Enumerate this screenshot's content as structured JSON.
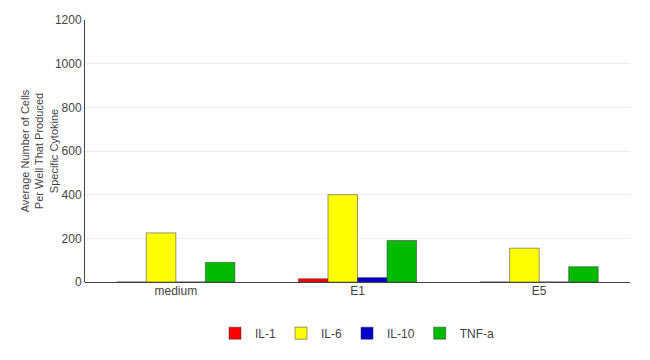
{
  "chart_data": {
    "type": "bar",
    "categories": [
      "medium",
      "E1",
      "E5"
    ],
    "series": [
      {
        "name": "IL-1",
        "color": "#ff0000",
        "values": [
          0,
          15,
          0
        ]
      },
      {
        "name": "IL-6",
        "color": "#ffff00",
        "values": [
          225,
          400,
          155
        ]
      },
      {
        "name": "IL-10",
        "color": "#0000cc",
        "values": [
          0,
          20,
          0
        ]
      },
      {
        "name": "TNF-a",
        "color": "#00bb00",
        "values": [
          90,
          190,
          70
        ]
      }
    ],
    "ylabel": "Average Number of Cells\nPer Well That Produced\nSpecific Cytokine",
    "ylim": [
      0,
      1200
    ],
    "yticks": [
      0,
      200,
      400,
      600,
      800,
      1000,
      1200
    ],
    "grid": true,
    "legend": "bottom"
  }
}
